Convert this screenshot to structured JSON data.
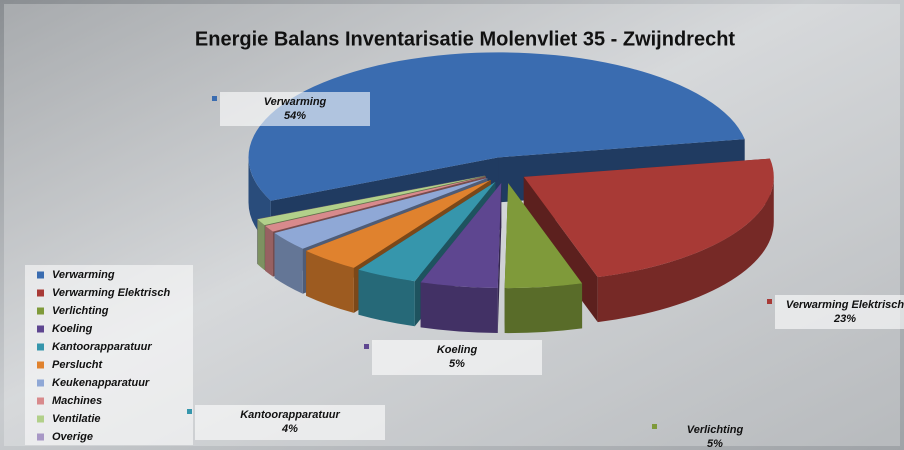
{
  "chart_data": {
    "type": "pie",
    "title": "Energie Balans Inventarisatie Molenvliet 35 - Zwijndrecht",
    "categories": [
      "Verwarming",
      "Verwarming Elektrisch",
      "Verlichting",
      "Koeling",
      "Kantoorapparatuur",
      "Perslucht",
      "Keukenapparatuur",
      "Machines",
      "Ventilatie",
      "Overige"
    ],
    "values": [
      54,
      23,
      5,
      5,
      4,
      4,
      3,
      1,
      1,
      0
    ],
    "value_labels": [
      "54%",
      "23%",
      "5%",
      "5%",
      "4%",
      null,
      null,
      null,
      null,
      null
    ],
    "colors": [
      "#3a6cb0",
      "#a83a36",
      "#7f9a3a",
      "#5e4690",
      "#3696ac",
      "#e0822e",
      "#8fa8d6",
      "#d88a8c",
      "#b2d08a",
      "#a898c6"
    ],
    "legend": "bottom-left"
  }
}
